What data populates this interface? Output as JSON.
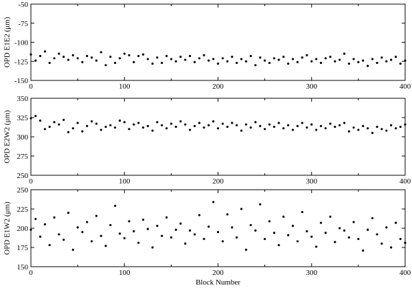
{
  "chart_data": [
    {
      "type": "scatter",
      "title": "",
      "xlabel": "",
      "ylabel": "OPD E1E2 (μm)",
      "xlim": [
        0,
        400
      ],
      "ylim": [
        -150,
        -50
      ],
      "xticks": [
        "0",
        "100",
        "200",
        "300",
        "400"
      ],
      "yticks": [
        "-150",
        "-125",
        "-100",
        "-75",
        "-50"
      ],
      "grid": false,
      "marker_color": "#000000",
      "series": [
        {
          "x": [
            0,
            5,
            10,
            15,
            20,
            25,
            30,
            35,
            40,
            45,
            50,
            55,
            60,
            65,
            70,
            75,
            80,
            85,
            90,
            95,
            100,
            105,
            110,
            115,
            120,
            125,
            130,
            135,
            140,
            145,
            150,
            155,
            160,
            165,
            170,
            175,
            180,
            185,
            190,
            195,
            200,
            205,
            210,
            215,
            220,
            225,
            230,
            235,
            240,
            245,
            250,
            255,
            260,
            265,
            270,
            275,
            280,
            285,
            290,
            295,
            300,
            305,
            310,
            315,
            320,
            325,
            330,
            335,
            340,
            345,
            350,
            355,
            360,
            365,
            370,
            375,
            380,
            385,
            390,
            395,
            400
          ],
          "y": [
            -116,
            -124,
            -118,
            -112,
            -127,
            -121,
            -115,
            -119,
            -123,
            -117,
            -121,
            -126,
            -118,
            -120,
            -124,
            -113,
            -130,
            -119,
            -127,
            -121,
            -115,
            -117,
            -126,
            -118,
            -116,
            -122,
            -128,
            -120,
            -127,
            -118,
            -122,
            -125,
            -119,
            -123,
            -118,
            -126,
            -121,
            -117,
            -124,
            -122,
            -128,
            -121,
            -125,
            -119,
            -127,
            -122,
            -125,
            -118,
            -130,
            -120,
            -124,
            -127,
            -121,
            -123,
            -119,
            -128,
            -122,
            -126,
            -120,
            -117,
            -125,
            -122,
            -127,
            -121,
            -119,
            -125,
            -123,
            -115,
            -128,
            -122,
            -126,
            -124,
            -131,
            -122,
            -127,
            -120,
            -125,
            -123,
            -119,
            -128,
            -124
          ]
        }
      ]
    },
    {
      "type": "scatter",
      "title": "",
      "xlabel": "",
      "ylabel": "OPD E2W2 (μm)",
      "xlim": [
        0,
        400
      ],
      "ylim": [
        250,
        350
      ],
      "xticks": [
        "0",
        "100",
        "200",
        "300",
        "400"
      ],
      "yticks": [
        "250",
        "275",
        "300",
        "325",
        "350"
      ],
      "grid": false,
      "marker_color": "#000000",
      "series": [
        {
          "x": [
            0,
            5,
            10,
            15,
            20,
            25,
            30,
            35,
            40,
            45,
            50,
            55,
            60,
            65,
            70,
            75,
            80,
            85,
            90,
            95,
            100,
            105,
            110,
            115,
            120,
            125,
            130,
            135,
            140,
            145,
            150,
            155,
            160,
            165,
            170,
            175,
            180,
            185,
            190,
            195,
            200,
            205,
            210,
            215,
            220,
            225,
            230,
            235,
            240,
            245,
            250,
            255,
            260,
            265,
            270,
            275,
            280,
            285,
            290,
            295,
            300,
            305,
            310,
            315,
            320,
            325,
            330,
            335,
            340,
            345,
            350,
            355,
            360,
            365,
            370,
            375,
            380,
            385,
            390,
            395,
            400
          ],
          "y": [
            324,
            327,
            321,
            310,
            313,
            319,
            316,
            322,
            306,
            311,
            318,
            307,
            314,
            320,
            317,
            309,
            313,
            315,
            312,
            321,
            319,
            310,
            316,
            318,
            312,
            314,
            308,
            319,
            315,
            311,
            317,
            313,
            320,
            316,
            309,
            314,
            318,
            312,
            315,
            320,
            311,
            317,
            313,
            318,
            315,
            308,
            316,
            312,
            319,
            314,
            310,
            316,
            313,
            318,
            311,
            315,
            309,
            314,
            318,
            312,
            316,
            309,
            314,
            311,
            317,
            313,
            315,
            318,
            307,
            312,
            309,
            314,
            311,
            305,
            313,
            310,
            308,
            315,
            311,
            313,
            316
          ]
        }
      ]
    },
    {
      "type": "scatter",
      "title": "",
      "xlabel": "Block Number",
      "ylabel": "OPD E1W2 (μm)",
      "xlim": [
        0,
        400
      ],
      "ylim": [
        150,
        250
      ],
      "xticks": [
        "0",
        "100",
        "200",
        "300",
        "400"
      ],
      "yticks": [
        "150",
        "175",
        "200",
        "225",
        "250"
      ],
      "grid": false,
      "marker_color": "#000000",
      "series": [
        {
          "x": [
            0,
            5,
            10,
            15,
            20,
            25,
            30,
            35,
            40,
            45,
            50,
            55,
            60,
            65,
            70,
            75,
            80,
            85,
            90,
            95,
            100,
            105,
            110,
            115,
            120,
            125,
            130,
            135,
            140,
            145,
            150,
            155,
            160,
            165,
            170,
            175,
            180,
            185,
            190,
            195,
            200,
            205,
            210,
            215,
            220,
            225,
            230,
            235,
            240,
            245,
            250,
            255,
            260,
            265,
            270,
            275,
            280,
            285,
            290,
            295,
            300,
            305,
            310,
            315,
            320,
            325,
            330,
            335,
            340,
            345,
            350,
            355,
            360,
            365,
            370,
            375,
            380,
            385,
            390,
            395,
            400
          ],
          "y": [
            198,
            212,
            189,
            205,
            178,
            214,
            192,
            185,
            220,
            172,
            201,
            195,
            208,
            183,
            216,
            190,
            177,
            204,
            229,
            193,
            187,
            209,
            196,
            181,
            211,
            199,
            175,
            203,
            190,
            214,
            188,
            198,
            206,
            180,
            197,
            192,
            217,
            186,
            202,
            234,
            195,
            183,
            218,
            201,
            188,
            225,
            172,
            204,
            197,
            231,
            186,
            209,
            194,
            178,
            215,
            191,
            203,
            183,
            221,
            196,
            189,
            176,
            207,
            194,
            215,
            182,
            200,
            197,
            188,
            208,
            186,
            171,
            198,
            213,
            192,
            180,
            201,
            175,
            207,
            186,
            181
          ]
        }
      ]
    }
  ]
}
